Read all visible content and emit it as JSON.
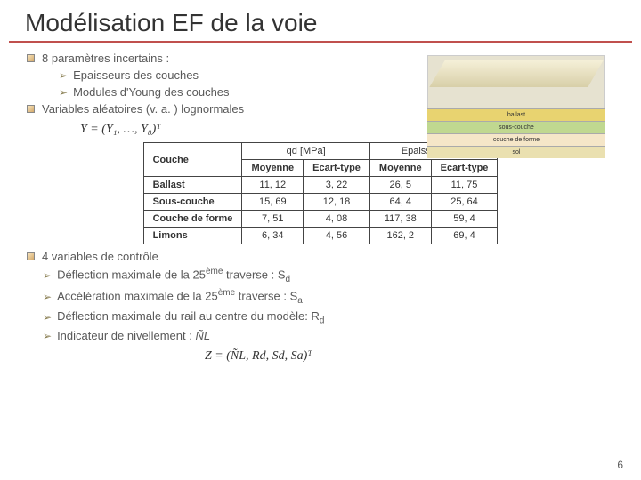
{
  "title": "Modélisation EF de la voie",
  "intro": {
    "line1": "8 paramètres incertains :",
    "sub1": "Epaisseurs des couches",
    "sub2": "Modules d'Young des couches",
    "line2": "Variables aléatoires (v. a. ) lognormales"
  },
  "formula1": "Y = (Y₁, …, Y₈)ᵀ",
  "figure_layers": {
    "l1_label": "ballast",
    "l2_label": "sous-couche",
    "l3_label": "couche de forme",
    "l4_label": "sol",
    "l1_color": "#e8d370",
    "l2_color": "#c0d890",
    "l3_color": "#f5e6c8",
    "l4_color": "#eae0b0"
  },
  "table": {
    "col_couche": "Couche",
    "col_qd": "qd [MPa]",
    "col_ep": "Epaisseur [cm]",
    "col_moy": "Moyenne",
    "col_et": "Ecart-type",
    "rows": [
      {
        "name": "Ballast",
        "qd_m": "11, 12",
        "qd_e": "3, 22",
        "ep_m": "26, 5",
        "ep_e": "11, 75"
      },
      {
        "name": "Sous-couche",
        "qd_m": "15, 69",
        "qd_e": "12, 18",
        "ep_m": "64, 4",
        "ep_e": "25, 64"
      },
      {
        "name": "Couche de forme",
        "qd_m": "7, 51",
        "qd_e": "4, 08",
        "ep_m": "117, 38",
        "ep_e": "59, 4"
      },
      {
        "name": "Limons",
        "qd_m": "6, 34",
        "qd_e": "4, 56",
        "ep_m": "162, 2",
        "ep_e": "69, 4"
      }
    ]
  },
  "outro": {
    "heading": "4 variables de contrôle",
    "item1_pre": "Déflection maximale de la 25",
    "item1_sup": "ème",
    "item1_post": " traverse : S",
    "item1_sub": "d",
    "item2_pre": "Accélération maximale de la 25",
    "item2_sup": "ème",
    "item2_post": " traverse : S",
    "item2_sub": "a",
    "item3_pre": "Déflection maximale du rail au centre du modèle: R",
    "item3_sub": "d",
    "item4": "Indicateur de nivellement :",
    "item4_sym": "N͂L"
  },
  "formula2": "Z = (N͂L, Rd, Sd, Sa)ᵀ",
  "page": "6",
  "colors": {
    "title_underline": "#c0504d",
    "text_gray": "#595959"
  }
}
